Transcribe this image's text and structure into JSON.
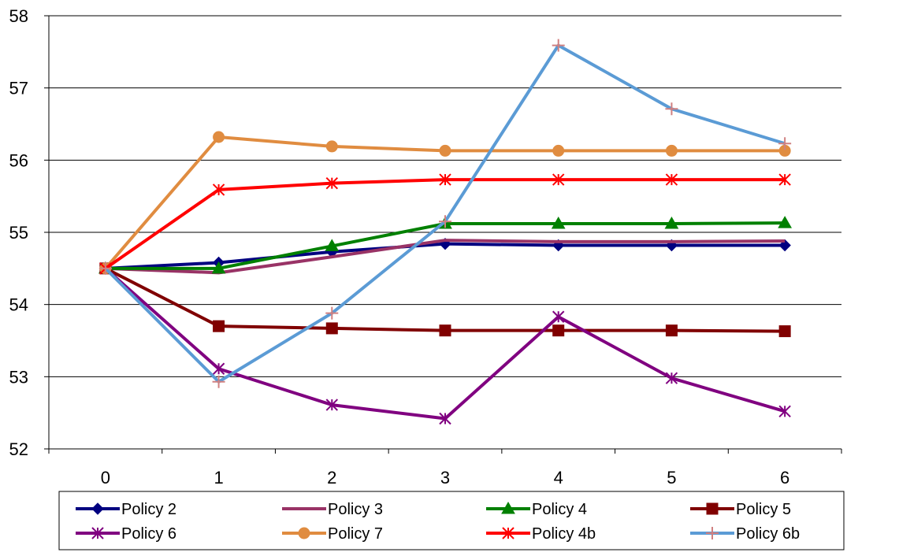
{
  "chart_data": {
    "type": "line",
    "title": "",
    "xlabel": "",
    "ylabel": "",
    "x": [
      "0",
      "1",
      "2",
      "3",
      "4",
      "5",
      "6"
    ],
    "ylim": [
      52,
      58
    ],
    "yticks": [
      "52",
      "53",
      "54",
      "55",
      "56",
      "57",
      "58"
    ],
    "grid": "horizontal",
    "legend_position": "bottom",
    "series": [
      {
        "name": "Policy 2",
        "color": "#000080",
        "marker": "diamond",
        "values": [
          54.5,
          54.58,
          54.73,
          54.84,
          54.82,
          54.82,
          54.82
        ]
      },
      {
        "name": "Policy 3",
        "color": "#993366",
        "marker": "none",
        "values": [
          54.5,
          54.44,
          54.66,
          54.89,
          54.87,
          54.87,
          54.88
        ]
      },
      {
        "name": "Policy 4",
        "color": "#008000",
        "marker": "triangle",
        "values": [
          54.5,
          54.5,
          54.81,
          55.12,
          55.12,
          55.12,
          55.13
        ]
      },
      {
        "name": "Policy 5",
        "color": "#800000",
        "marker": "square",
        "values": [
          54.5,
          53.7,
          53.67,
          53.64,
          53.64,
          53.64,
          53.63
        ]
      },
      {
        "name": "Policy 6",
        "color": "#800080",
        "marker": "asterisk",
        "values": [
          54.5,
          53.11,
          52.61,
          52.42,
          53.83,
          52.98,
          52.52
        ]
      },
      {
        "name": "Policy 7",
        "color": "#E08C40",
        "marker": "circle",
        "values": [
          54.5,
          56.32,
          56.19,
          56.13,
          56.13,
          56.13,
          56.13
        ]
      },
      {
        "name": "Policy 4b",
        "color": "#FF0000",
        "marker": "asterisk",
        "values": [
          54.5,
          55.59,
          55.68,
          55.73,
          55.73,
          55.73,
          55.73
        ]
      },
      {
        "name": "Policy 6b",
        "color": "#5B9BD5",
        "marker": "plus",
        "marker_color": "#D08080",
        "values": [
          54.5,
          52.93,
          53.88,
          55.15,
          57.59,
          56.71,
          56.23
        ]
      }
    ]
  }
}
